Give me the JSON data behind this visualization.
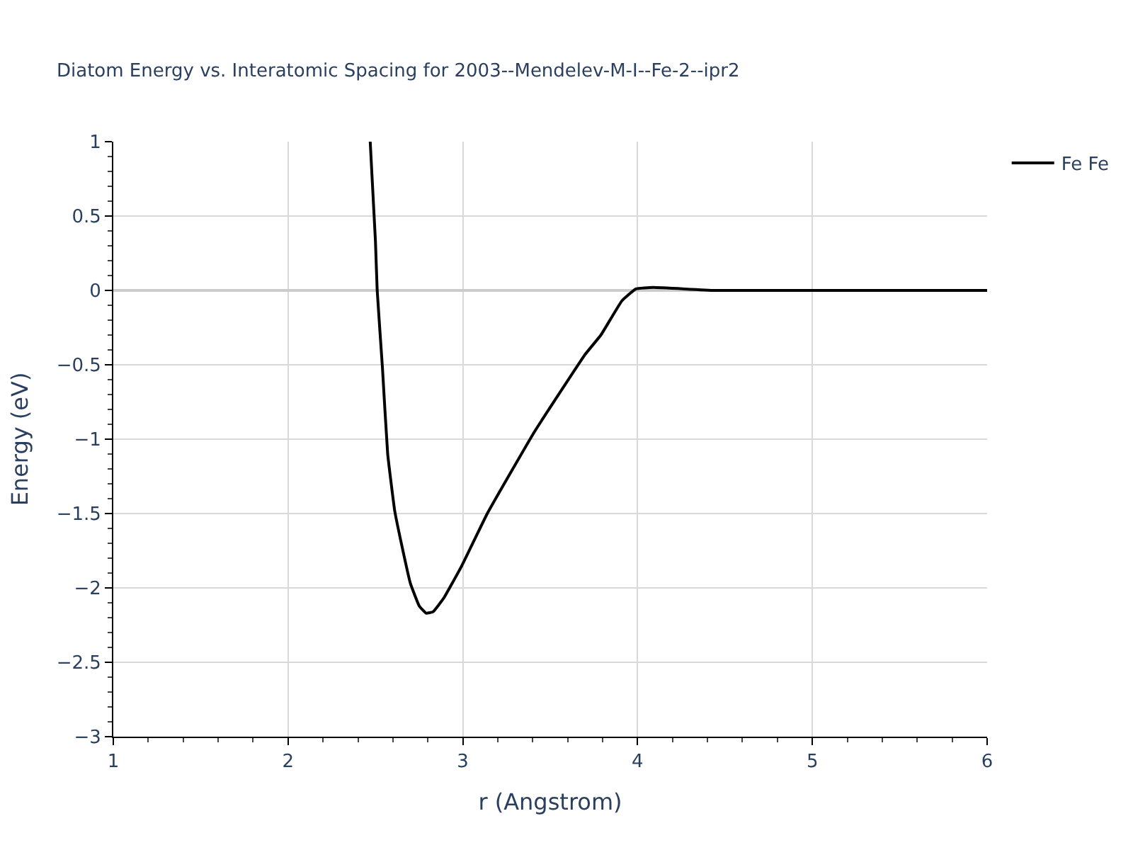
{
  "chart_data": {
    "type": "line",
    "title": "Diatom Energy vs. Interatomic Spacing for 2003--Mendelev-M-I--Fe-2--ipr2",
    "xlabel": "r (Angstrom)",
    "ylabel": "Energy (eV)",
    "series": [
      {
        "name": "Fe Fe",
        "color": "#000000",
        "x": [
          2.47,
          2.5,
          2.51,
          2.54,
          2.57,
          2.61,
          2.65,
          2.7,
          2.75,
          2.79,
          2.83,
          2.89,
          2.99,
          3.14,
          3.41,
          3.7,
          3.79,
          3.91,
          3.99,
          4.09,
          4.44,
          6.0
        ],
        "values": [
          1.0,
          0.33,
          0.0,
          -0.52,
          -1.1,
          -1.48,
          -1.71,
          -1.97,
          -2.12,
          -2.17,
          -2.16,
          -2.07,
          -1.86,
          -1.5,
          -0.95,
          -0.43,
          -0.3,
          -0.07,
          0.01,
          0.02,
          0.0,
          0.0
        ]
      }
    ],
    "xlim": [
      1,
      6
    ],
    "xticks": [
      1,
      {
        "value": 1.2,
        "label": null
      },
      {
        "value": 1.4,
        "label": null
      },
      {
        "value": 1.6,
        "label": null
      },
      {
        "value": 1.8,
        "label": null
      },
      2,
      {
        "value": 2.2,
        "label": null
      },
      {
        "value": 2.4,
        "label": null
      },
      {
        "value": 2.6,
        "label": null
      },
      {
        "value": 2.8,
        "label": null
      },
      3,
      {
        "value": 3.2,
        "label": null
      },
      {
        "value": 3.4,
        "label": null
      },
      {
        "value": 3.6,
        "label": null
      },
      {
        "value": 3.8,
        "label": null
      },
      4,
      {
        "value": 4.2,
        "label": null
      },
      {
        "value": 4.4,
        "label": null
      },
      {
        "value": 4.6,
        "label": null
      },
      {
        "value": 4.8,
        "label": null
      },
      5,
      {
        "value": 5.2,
        "label": null
      },
      {
        "value": 5.4,
        "label": null
      },
      {
        "value": 5.6,
        "label": null
      },
      {
        "value": 5.8,
        "label": null
      },
      6
    ],
    "ylim": [
      -3,
      1
    ],
    "yticks": [
      -3,
      {
        "value": -2.9,
        "label": null
      },
      {
        "value": -2.8,
        "label": null
      },
      {
        "value": -2.7,
        "label": null
      },
      {
        "value": -2.6,
        "label": null
      },
      {
        "value": -2.5,
        "label": "−2.5"
      },
      {
        "value": -2.4,
        "label": null
      },
      {
        "value": -2.3,
        "label": null
      },
      {
        "value": -2.2,
        "label": null
      },
      {
        "value": -2.1,
        "label": null
      },
      {
        "value": -2,
        "label": "−2"
      },
      {
        "value": -1.9,
        "label": null
      },
      {
        "value": -1.8,
        "label": null
      },
      {
        "value": -1.7,
        "label": null
      },
      {
        "value": -1.6,
        "label": null
      },
      {
        "value": -1.5,
        "label": "−1.5"
      },
      {
        "value": -1.4,
        "label": null
      },
      {
        "value": -1.3,
        "label": null
      },
      {
        "value": -1.2,
        "label": null
      },
      {
        "value": -1.1,
        "label": null
      },
      {
        "value": -1,
        "label": "−1"
      },
      {
        "value": -0.9,
        "label": null
      },
      {
        "value": -0.8,
        "label": null
      },
      {
        "value": -0.7,
        "label": null
      },
      {
        "value": -0.6,
        "label": null
      },
      {
        "value": -0.5,
        "label": "−0.5"
      },
      {
        "value": -0.4,
        "label": null
      },
      {
        "value": -0.3,
        "label": null
      },
      {
        "value": -0.2,
        "label": null
      },
      {
        "value": -0.1,
        "label": null
      },
      0,
      {
        "value": 0.1,
        "label": null
      },
      {
        "value": 0.2,
        "label": null
      },
      {
        "value": 0.3,
        "label": null
      },
      {
        "value": 0.4,
        "label": null
      },
      0.5,
      {
        "value": 0.6,
        "label": null
      },
      {
        "value": 0.7,
        "label": null
      },
      {
        "value": 0.8,
        "label": null
      },
      {
        "value": 0.9,
        "label": null
      },
      1
    ],
    "grid": true,
    "legend": "top right",
    "line_style": "solid",
    "marker": "none"
  }
}
